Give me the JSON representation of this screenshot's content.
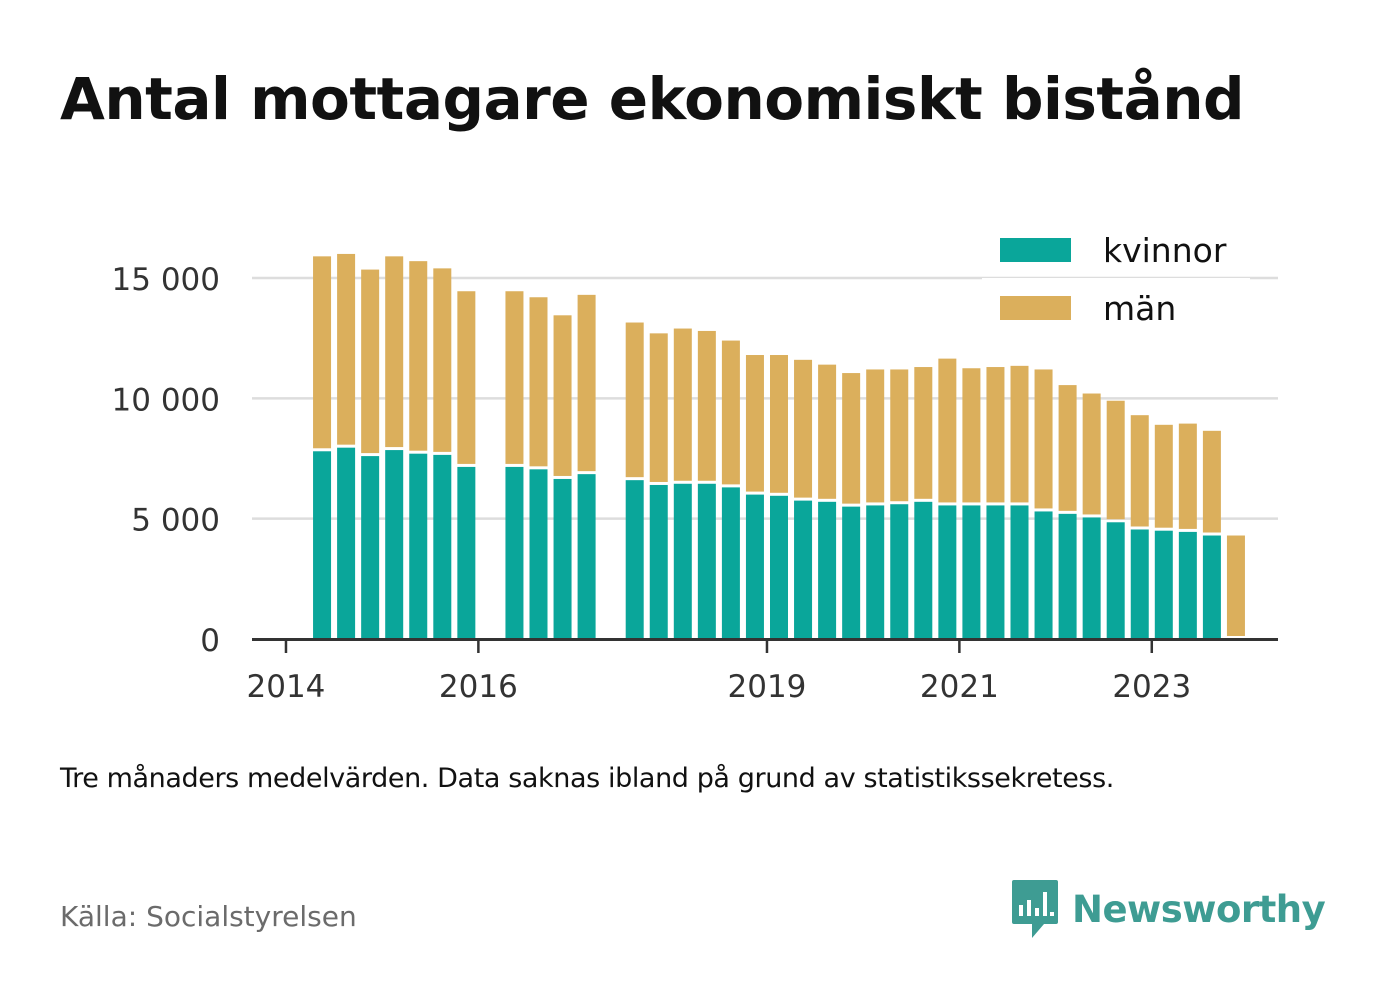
{
  "title": "Antal mottagare ekonomiskt bistånd",
  "note": "Tre månaders medelvärden. Data saknas ibland på grund av statistikssekretess.",
  "source": "Källa: Socialstyrelsen",
  "brand": "Newsworthy",
  "colors": {
    "kvinnor": "#0aa69a",
    "man": "#dbaf5c",
    "brand": "#3e9c93",
    "grid": "#dddddd",
    "axis": "#333333"
  },
  "chart_data": {
    "type": "bar",
    "stacked": true,
    "xlabel": "",
    "ylabel": "",
    "ylim": [
      0,
      16500
    ],
    "y_ticks": [
      0,
      5000,
      10000,
      15000
    ],
    "y_tick_labels": [
      "0",
      "5 000",
      "10 000",
      "15 000"
    ],
    "x_tick_labels": [
      "2014",
      "2016",
      "2019",
      "2021",
      "2023"
    ],
    "grid": true,
    "legend_position": "top-right",
    "note": "each category is a three-month period (2014-01 = Jan–Mar 2014)",
    "categories": [
      "2014-01",
      "2014-04",
      "2014-07",
      "2014-10",
      "2015-01",
      "2015-04",
      "2015-07",
      "2015-10",
      "2016-01",
      "2016-04",
      "2016-07",
      "2016-10",
      "2017-01",
      "2017-04",
      "2017-07",
      "2017-10",
      "2018-01",
      "2018-04",
      "2018-07",
      "2018-10",
      "2019-01",
      "2019-04",
      "2019-07",
      "2019-10",
      "2020-01",
      "2020-04",
      "2020-07",
      "2020-10",
      "2021-01",
      "2021-04",
      "2021-07",
      "2021-10",
      "2022-01",
      "2022-04",
      "2022-07",
      "2022-10",
      "2023-01",
      "2023-04",
      "2023-07",
      "2023-10",
      "2024-01"
    ],
    "series": [
      {
        "name": "kvinnor",
        "color": "#0aa69a",
        "values": [
          null,
          7800,
          7950,
          7600,
          7850,
          7700,
          7650,
          7150,
          null,
          7150,
          7050,
          6650,
          6850,
          null,
          6600,
          6400,
          6450,
          6450,
          6300,
          6000,
          5950,
          5750,
          5700,
          5500,
          5550,
          5600,
          5700,
          5550,
          5550,
          5550,
          5550,
          5300,
          5200,
          5050,
          4850,
          4550,
          4500,
          4450,
          4300,
          null,
          null
        ]
      },
      {
        "name": "män",
        "color": "#dbaf5c",
        "values": [
          null,
          8100,
          8050,
          7750,
          8050,
          8000,
          7750,
          7300,
          null,
          7300,
          7150,
          6800,
          7450,
          null,
          6550,
          6300,
          6450,
          6350,
          6100,
          5800,
          5850,
          5850,
          5700,
          5550,
          5650,
          5600,
          5600,
          6100,
          5700,
          5750,
          5800,
          5900,
          5350,
          5150,
          5050,
          4750,
          4400,
          4500,
          4350,
          4300,
          null
        ]
      }
    ]
  }
}
